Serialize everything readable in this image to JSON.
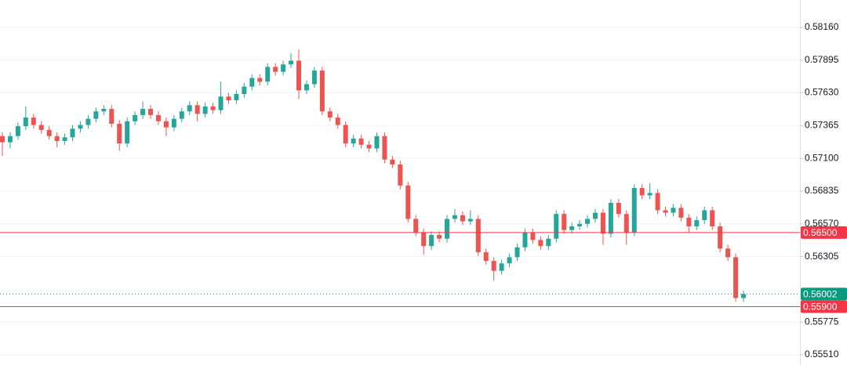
{
  "chart_data": {
    "type": "candlestick",
    "open": [
      0.5728,
      0.5723,
      0.5728,
      0.5736,
      0.5743,
      0.5737,
      0.5733,
      0.5728,
      0.5724,
      0.5727,
      0.5734,
      0.5737,
      0.5742,
      0.5748,
      0.575,
      0.5738,
      0.5722,
      0.574,
      0.5745,
      0.575,
      0.5745,
      0.574,
      0.5735,
      0.5742,
      0.5748,
      0.5753,
      0.5746,
      0.5752,
      0.5749,
      0.576,
      0.5757,
      0.5762,
      0.5768,
      0.5775,
      0.5772,
      0.5784,
      0.578,
      0.5786,
      0.5789,
      0.5765,
      0.577,
      0.5781,
      0.5748,
      0.5743,
      0.5737,
      0.5722,
      0.5726,
      0.5721,
      0.5718,
      0.5728,
      0.5709,
      0.5705,
      0.5688,
      0.5661,
      0.565,
      0.5639,
      0.5648,
      0.5645,
      0.5661,
      0.5664,
      0.5659,
      0.5661,
      0.5634,
      0.5627,
      0.5619,
      0.5625,
      0.563,
      0.5638,
      0.565,
      0.5644,
      0.5639,
      0.5645,
      0.5665,
      0.5652,
      0.5655,
      0.5657,
      0.5661,
      0.5666,
      0.5649,
      0.5674,
      0.5665,
      0.565,
      0.5686,
      0.568,
      0.5682,
      0.5668,
      0.5666,
      0.567,
      0.5662,
      0.5655,
      0.566,
      0.5668,
      0.5655,
      0.5637,
      0.563,
      0.5597
    ],
    "high": [
      0.5731,
      0.5731,
      0.5739,
      0.5752,
      0.5746,
      0.574,
      0.5736,
      0.5731,
      0.573,
      0.5737,
      0.574,
      0.5745,
      0.5751,
      0.5753,
      0.5753,
      0.5741,
      0.5743,
      0.5748,
      0.5756,
      0.5753,
      0.5748,
      0.5743,
      0.5745,
      0.5751,
      0.5756,
      0.5756,
      0.5755,
      0.5755,
      0.5772,
      0.5763,
      0.5765,
      0.5771,
      0.5778,
      0.5778,
      0.5787,
      0.5787,
      0.5789,
      0.5795,
      0.5798,
      0.5773,
      0.5784,
      0.5784,
      0.5751,
      0.5746,
      0.574,
      0.5729,
      0.5729,
      0.5724,
      0.5731,
      0.5731,
      0.5712,
      0.5708,
      0.5691,
      0.5664,
      0.5653,
      0.5651,
      0.5651,
      0.5664,
      0.5669,
      0.5667,
      0.5668,
      0.5664,
      0.5637,
      0.563,
      0.5628,
      0.5633,
      0.5641,
      0.5653,
      0.5653,
      0.5647,
      0.5648,
      0.5668,
      0.5668,
      0.5658,
      0.566,
      0.5664,
      0.5669,
      0.5669,
      0.5677,
      0.5677,
      0.5668,
      0.5689,
      0.5689,
      0.569,
      0.5685,
      0.5671,
      0.5673,
      0.5673,
      0.5665,
      0.5663,
      0.5671,
      0.5671,
      0.5658,
      0.564,
      0.5633,
      0.5603
    ],
    "low": [
      0.5712,
      0.5718,
      0.5725,
      0.5733,
      0.5734,
      0.573,
      0.5725,
      0.5719,
      0.5721,
      0.5724,
      0.5731,
      0.5734,
      0.5739,
      0.5745,
      0.5735,
      0.5716,
      0.5719,
      0.5737,
      0.5742,
      0.5742,
      0.5737,
      0.5728,
      0.5732,
      0.5739,
      0.5745,
      0.574,
      0.5743,
      0.5746,
      0.5746,
      0.5754,
      0.5754,
      0.5759,
      0.5765,
      0.5769,
      0.5769,
      0.5777,
      0.5777,
      0.5783,
      0.5758,
      0.5762,
      0.5767,
      0.5745,
      0.574,
      0.5734,
      0.5719,
      0.5719,
      0.5718,
      0.5715,
      0.5715,
      0.5706,
      0.5702,
      0.5685,
      0.5658,
      0.5647,
      0.5632,
      0.5636,
      0.5642,
      0.5642,
      0.5658,
      0.5656,
      0.5656,
      0.5631,
      0.5624,
      0.5611,
      0.5616,
      0.5622,
      0.5627,
      0.5635,
      0.5641,
      0.5636,
      0.5636,
      0.5642,
      0.5649,
      0.5649,
      0.5652,
      0.5654,
      0.5658,
      0.564,
      0.5646,
      0.5662,
      0.564,
      0.5647,
      0.5677,
      0.5677,
      0.5665,
      0.5663,
      0.5663,
      0.5659,
      0.565,
      0.5652,
      0.5657,
      0.5652,
      0.5634,
      0.5627,
      0.5594,
      0.5594
    ],
    "close": [
      0.5723,
      0.5728,
      0.5736,
      0.5743,
      0.5737,
      0.5733,
      0.5728,
      0.5724,
      0.5727,
      0.5734,
      0.5737,
      0.5742,
      0.5748,
      0.575,
      0.5738,
      0.5722,
      0.574,
      0.5745,
      0.575,
      0.5745,
      0.574,
      0.5735,
      0.5742,
      0.5748,
      0.5753,
      0.5746,
      0.5752,
      0.5749,
      0.576,
      0.5757,
      0.5762,
      0.5768,
      0.5775,
      0.5772,
      0.5784,
      0.578,
      0.5786,
      0.5789,
      0.5765,
      0.577,
      0.5781,
      0.5748,
      0.5743,
      0.5737,
      0.5722,
      0.5726,
      0.5721,
      0.5718,
      0.5728,
      0.5709,
      0.5705,
      0.5688,
      0.5661,
      0.565,
      0.5639,
      0.5648,
      0.5645,
      0.5661,
      0.5664,
      0.5659,
      0.5661,
      0.5634,
      0.5627,
      0.5619,
      0.5625,
      0.563,
      0.5638,
      0.565,
      0.5644,
      0.5639,
      0.5645,
      0.5665,
      0.5652,
      0.5655,
      0.5657,
      0.5661,
      0.5666,
      0.5649,
      0.5674,
      0.5665,
      0.565,
      0.5686,
      0.568,
      0.5682,
      0.5668,
      0.5666,
      0.567,
      0.5662,
      0.5655,
      0.566,
      0.5668,
      0.5655,
      0.5637,
      0.563,
      0.5597,
      0.56002
    ],
    "up_color": "#26a69a",
    "down_color": "#ef5350",
    "ylim": [
      0.55428,
      0.58381
    ],
    "yticks": [
      {
        "value": 0.5816,
        "label": "0.58160"
      },
      {
        "value": 0.57895,
        "label": "0.57895"
      },
      {
        "value": 0.5763,
        "label": "0.57630"
      },
      {
        "value": 0.57365,
        "label": "0.57365"
      },
      {
        "value": 0.571,
        "label": "0.57100"
      },
      {
        "value": 0.56835,
        "label": "0.56835"
      },
      {
        "value": 0.5657,
        "label": "0.56570"
      },
      {
        "value": 0.56305,
        "label": "0.56305"
      },
      {
        "value": 0.55775,
        "label": "0.55775"
      },
      {
        "value": 0.5551,
        "label": "0.55510"
      }
    ],
    "grid": true,
    "price_lines": [
      {
        "value": 0.565,
        "label": "0.56500",
        "color": "#f23645",
        "dashed": false
      },
      {
        "value": 0.56002,
        "label": "0.56002",
        "color": "#089981",
        "dashed": true
      },
      {
        "value": 0.559,
        "label": "0.55900",
        "color": "#f23645",
        "dashed": false
      }
    ]
  }
}
